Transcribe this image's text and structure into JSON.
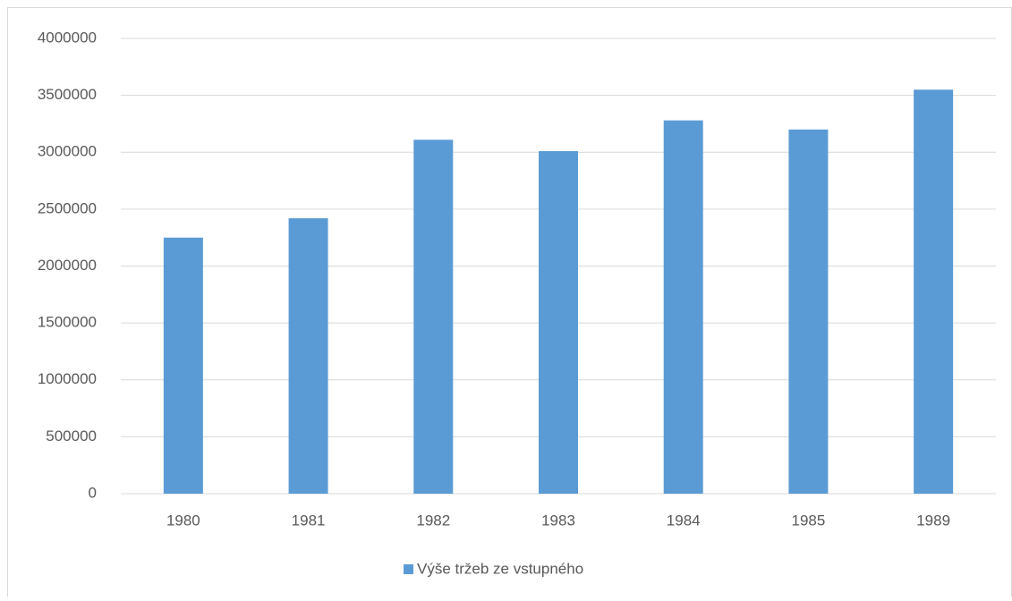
{
  "chart_data": {
    "type": "bar",
    "categories": [
      "1980",
      "1981",
      "1982",
      "1983",
      "1984",
      "1985",
      "1989"
    ],
    "series": [
      {
        "name": "Výše tržeb ze vstupného",
        "color": "#5b9bd5",
        "values": [
          2250000,
          2420000,
          3110000,
          3010000,
          3280000,
          3200000,
          3550000
        ]
      }
    ],
    "ylim": [
      0,
      4000000
    ],
    "yticks": [
      0,
      500000,
      1000000,
      1500000,
      2000000,
      2500000,
      3000000,
      3500000,
      4000000
    ],
    "grid": true,
    "legend": "bottom"
  }
}
